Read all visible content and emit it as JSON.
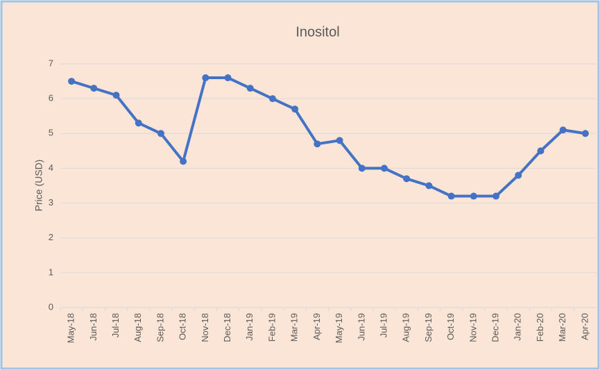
{
  "chart_data": {
    "type": "line",
    "title": "Inositol",
    "y_label": "Price (USD)",
    "categories": [
      "May-18",
      "Jun-18",
      "Jul-18",
      "Aug-18",
      "Sep-18",
      "Oct-18",
      "Nov-18",
      "Dec-18",
      "Jan-19",
      "Feb-19",
      "Mar-19",
      "Apr-19",
      "May-19",
      "Jun-19",
      "Jul-19",
      "Aug-19",
      "Sep-19",
      "Oct-19",
      "Nov-19",
      "Dec-19",
      "Jan-20",
      "Feb-20",
      "Mar-20",
      "Apr-20"
    ],
    "series": [
      {
        "name": "Inositol",
        "color": "#4472c4",
        "values": [
          6.5,
          6.3,
          6.1,
          5.3,
          5.0,
          4.2,
          6.6,
          6.6,
          6.3,
          6.0,
          5.7,
          4.7,
          4.8,
          4.0,
          4.0,
          3.7,
          3.5,
          3.2,
          3.2,
          3.2,
          3.8,
          4.5,
          5.1,
          5.0
        ]
      }
    ],
    "ylim": [
      0,
      7
    ],
    "yticks": [
      0,
      1,
      2,
      3,
      4,
      5,
      6,
      7
    ],
    "grid": true
  }
}
